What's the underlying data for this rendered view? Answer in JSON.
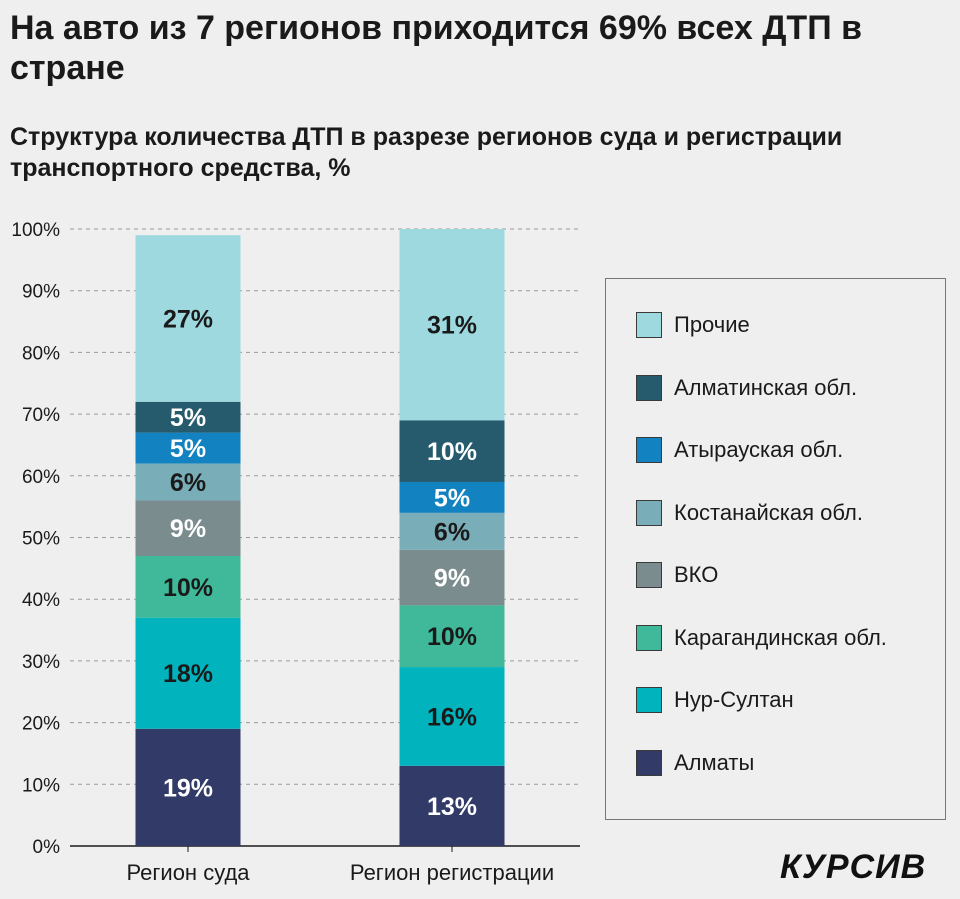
{
  "header": {
    "title": "На авто из 7 регионов приходится 69% всех ДТП в стране",
    "subtitle": "Структура количества ДТП в разрезе регионов суда и регистрации транспортного средства, %"
  },
  "brand": {
    "logo": "КУРСИВ"
  },
  "chart_data": {
    "type": "bar",
    "stacked": true,
    "categories": [
      "Регион суда",
      "Регион регистрации"
    ],
    "y_ticks": [
      "0%",
      "10%",
      "20%",
      "30%",
      "40%",
      "50%",
      "60%",
      "70%",
      "80%",
      "90%",
      "100%"
    ],
    "ylim": [
      0,
      100
    ],
    "grid": true,
    "legend_position": "right",
    "series": [
      {
        "name": "Алматы",
        "color": "#323a67",
        "label_color": "#ffffff",
        "values": [
          19,
          13
        ]
      },
      {
        "name": "Нур-Султан",
        "color": "#00b3bc",
        "label_color": "#1a1a1a",
        "values": [
          18,
          16
        ]
      },
      {
        "name": "Карагандинская обл.",
        "color": "#3fb99a",
        "label_color": "#1a1a1a",
        "values": [
          10,
          10
        ]
      },
      {
        "name": "ВКО",
        "color": "#7a8c8d",
        "label_color": "#ffffff",
        "values": [
          9,
          9
        ]
      },
      {
        "name": "Костанайская обл.",
        "color": "#79adb8",
        "label_color": "#1a1a1a",
        "values": [
          6,
          6
        ]
      },
      {
        "name": "Атырауская обл.",
        "color": "#1382c0",
        "label_color": "#ffffff",
        "values": [
          5,
          5
        ]
      },
      {
        "name": "Алматинская обл.",
        "color": "#265a6d",
        "label_color": "#ffffff",
        "values": [
          5,
          10
        ]
      },
      {
        "name": "Прочие",
        "color": "#9fd9e0",
        "label_color": "#1a1a1a",
        "values": [
          27,
          31
        ]
      }
    ],
    "data_labels": [
      [
        "19%",
        "18%",
        "10%",
        "9%",
        "6%",
        "5%",
        "5%",
        "27%"
      ],
      [
        "13%",
        "16%",
        "10%",
        "9%",
        "6%",
        "5%",
        "10%",
        "31%"
      ]
    ],
    "legend_order": [
      "Прочие",
      "Алматинская обл.",
      "Атырауская обл.",
      "Костанайская обл.",
      "ВКО",
      "Карагандинская обл.",
      "Нур-Султан",
      "Алматы"
    ]
  }
}
